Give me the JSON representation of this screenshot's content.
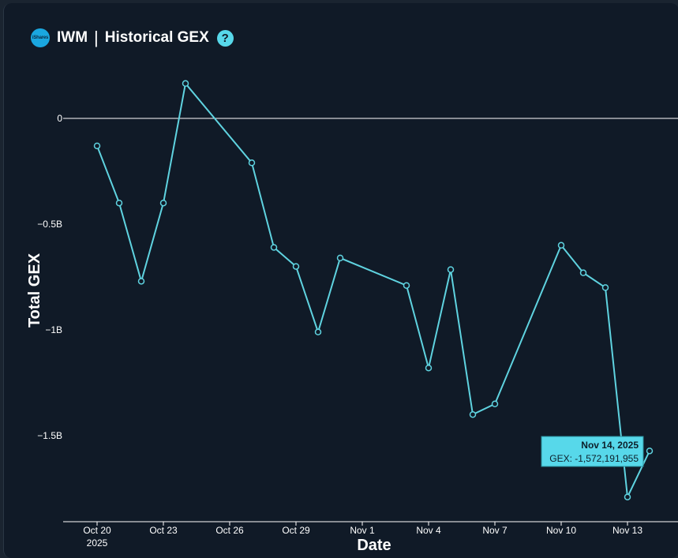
{
  "header": {
    "logo_text": "iShares",
    "ticker": "IWM",
    "separator": "|",
    "title": "Historical GEX",
    "help_symbol": "?"
  },
  "colors": {
    "line": "#5fd3e0",
    "zero_line": "#ffffff",
    "tooltip_bg": "#57d8ea",
    "background": "#101a27"
  },
  "chart_data": {
    "type": "line",
    "xlabel": "Date",
    "ylabel": "Total GEX",
    "x": [
      "2025-10-20",
      "2025-10-21",
      "2025-10-22",
      "2025-10-23",
      "2025-10-24",
      "2025-10-27",
      "2025-10-28",
      "2025-10-29",
      "2025-10-30",
      "2025-10-31",
      "2025-11-03",
      "2025-11-04",
      "2025-11-05",
      "2025-11-06",
      "2025-11-07",
      "2025-11-10",
      "2025-11-11",
      "2025-11-12",
      "2025-11-13",
      "2025-11-14"
    ],
    "values": [
      -130000000,
      -400000000,
      -770000000,
      -400000000,
      165000000,
      -210000000,
      -610000000,
      -700000000,
      -1010000000,
      -660000000,
      -790000000,
      -1180000000,
      -715000000,
      -1400000000,
      -1350000000,
      -600000000,
      -730000000,
      -800000000,
      -1790000000,
      -1572191955
    ],
    "ylim": [
      -1.88,
      0.2
    ],
    "yticks": [
      {
        "value": 0,
        "label": "0"
      },
      {
        "value": -0.5,
        "label": "−0.5B"
      },
      {
        "value": -1,
        "label": "−1B"
      },
      {
        "value": -1.5,
        "label": "−1.5B"
      }
    ],
    "xticks": [
      {
        "date": "2025-10-20",
        "label": "Oct 20",
        "sublabel": "2025"
      },
      {
        "date": "2025-10-23",
        "label": "Oct 23",
        "sublabel": ""
      },
      {
        "date": "2025-10-26",
        "label": "Oct 26",
        "sublabel": ""
      },
      {
        "date": "2025-10-29",
        "label": "Oct 29",
        "sublabel": ""
      },
      {
        "date": "2025-11-01",
        "label": "Nov 1",
        "sublabel": ""
      },
      {
        "date": "2025-11-04",
        "label": "Nov 4",
        "sublabel": ""
      },
      {
        "date": "2025-11-07",
        "label": "Nov 7",
        "sublabel": ""
      },
      {
        "date": "2025-11-10",
        "label": "Nov 10",
        "sublabel": ""
      },
      {
        "date": "2025-11-13",
        "label": "Nov 13",
        "sublabel": ""
      }
    ],
    "zero_line": true,
    "grid": false,
    "tooltip": {
      "date": "Nov 14, 2025",
      "text": "GEX: -1,572,191,955"
    }
  }
}
